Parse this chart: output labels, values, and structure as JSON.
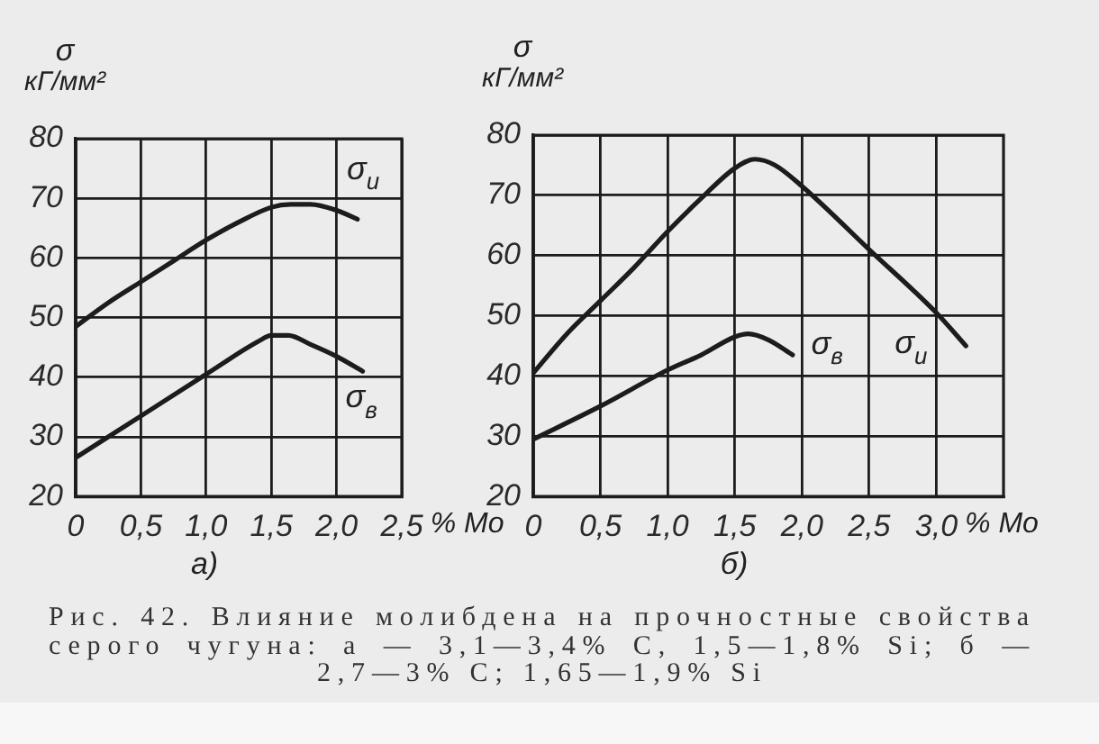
{
  "chart_data": [
    {
      "type": "line",
      "title": "а)",
      "xlabel": "% Mo",
      "ylabel": "σ\nкГ/мм²",
      "series": [
        {
          "name": "σ$_{и}$",
          "color": "#1c1c1c",
          "x": [
            0,
            0.25,
            0.5,
            0.75,
            1.0,
            1.25,
            1.5,
            1.65,
            1.8,
            2.0,
            2.16
          ],
          "values": [
            48.5,
            52.5,
            56,
            59.5,
            63,
            66,
            68.5,
            69,
            69,
            68,
            66.5
          ]
        },
        {
          "name": "σ$_{в}$",
          "color": "#1c1c1c",
          "x": [
            0,
            0.5,
            1.0,
            1.4,
            1.5,
            1.63,
            1.8,
            2.0,
            2.2
          ],
          "values": [
            26.5,
            33.5,
            40.5,
            46,
            47,
            47,
            45.5,
            43.5,
            41
          ]
        }
      ],
      "xlim": [
        0,
        2.5
      ],
      "xticks": [
        0,
        {
          "value": 0.5,
          "label": "0,5"
        },
        {
          "value": 1,
          "label": "1,0"
        },
        {
          "value": 1.5,
          "label": "1,5"
        },
        {
          "value": 2,
          "label": "2,0"
        },
        {
          "value": 2.5,
          "label": "2,5"
        }
      ],
      "ylim": [
        20,
        80
      ],
      "yticks": [
        20,
        30,
        40,
        50,
        60,
        70,
        80
      ],
      "grid": true,
      "marker": "none"
    },
    {
      "type": "line",
      "title": "б)",
      "xlabel": "% Mo",
      "ylabel": "σ\nкГ/мм²",
      "series": [
        {
          "name": "σ$_{и}$",
          "color": "#1c1c1c",
          "x": [
            0,
            0.25,
            0.5,
            0.75,
            1.0,
            1.25,
            1.5,
            1.65,
            1.8,
            2.0,
            2.5,
            3.0,
            3.22
          ],
          "values": [
            40.5,
            47,
            52.5,
            58,
            64,
            69.5,
            74.5,
            76,
            75,
            71.5,
            61,
            50.5,
            45
          ]
        },
        {
          "name": "σ$_{в}$",
          "color": "#1c1c1c",
          "x": [
            0,
            0.5,
            1.0,
            1.25,
            1.5,
            1.6,
            1.75,
            1.93
          ],
          "values": [
            29.5,
            35,
            41,
            43.5,
            46.5,
            47,
            46,
            43.5
          ]
        }
      ],
      "xlim": [
        0,
        3.5
      ],
      "xticks": [
        0,
        {
          "value": 0.5,
          "label": "0,5"
        },
        {
          "value": 1,
          "label": "1,0"
        },
        {
          "value": 1.5,
          "label": "1,5"
        },
        {
          "value": 2,
          "label": "2,0"
        },
        {
          "value": 2.5,
          "label": "2,5"
        },
        {
          "value": 3,
          "label": "3,0"
        }
      ],
      "ylim": [
        20,
        80
      ],
      "yticks": [
        20,
        30,
        40,
        50,
        60,
        70,
        80
      ],
      "grid": true,
      "marker": "none",
      "annotations": [
        "Рис. 42. Влияние молибдена на прочностные свойства серого чугуна: а — 3,1—3,4% C, 1,5—1,8% Si; б — 2,7—3% C; 1,65—1,9% Si"
      ]
    }
  ]
}
